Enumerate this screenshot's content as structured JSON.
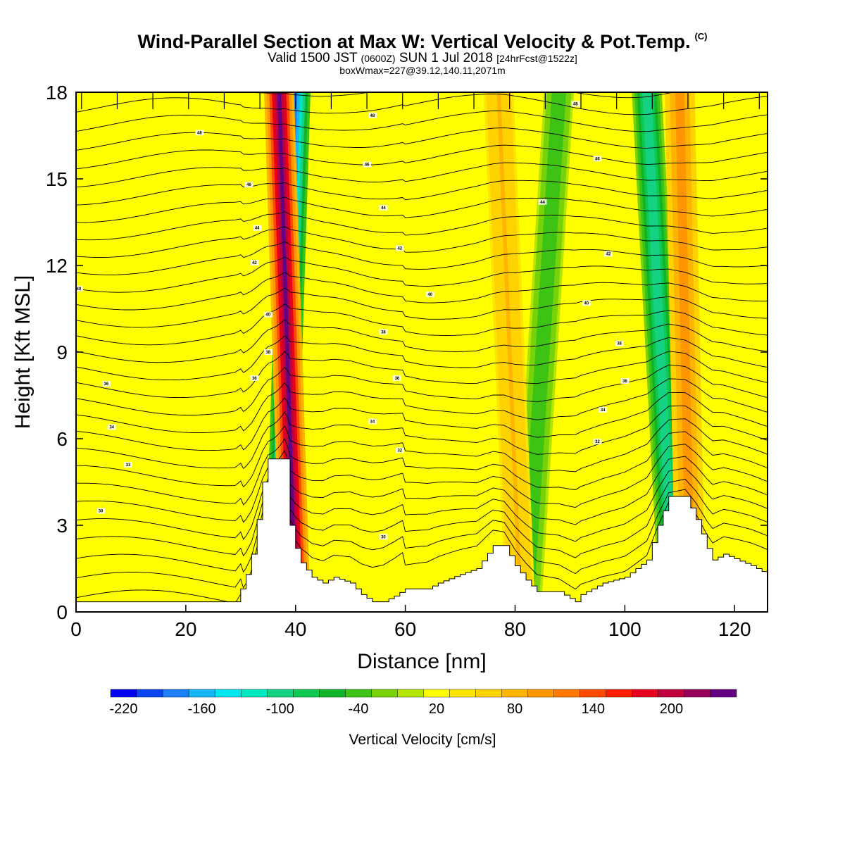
{
  "header": {
    "title": "Wind-Parallel Section at Max W: Vertical Velocity & Pot.Temp.",
    "copyright": "(C)",
    "valid_prefix": "Valid 1500 JST",
    "valid_utc": "(0600Z)",
    "valid_date": "SUN 1 Jul 2018",
    "forecast": "[24hrFcst@1522z]",
    "box_info": "boxWmax=227@39.12,140.11,2071m"
  },
  "colorbar": {
    "label": "Vertical Velocity [cm/s]",
    "tick_labels": [
      "-220",
      "-160",
      "-100",
      "-40",
      "20",
      "80",
      "140",
      "200"
    ],
    "colors": [
      "#0000f0",
      "#0a46f0",
      "#1a7ef5",
      "#14b4f5",
      "#00e6f0",
      "#00e6be",
      "#14d282",
      "#0fc850",
      "#0fb428",
      "#3cc314",
      "#78d20a",
      "#b4e600",
      "#ffff00",
      "#ffe600",
      "#ffd200",
      "#ffb400",
      "#ff9600",
      "#ff7800",
      "#ff4b00",
      "#ff1e00",
      "#e6001e",
      "#be003c",
      "#96005a",
      "#640082"
    ]
  },
  "chart_data": {
    "type": "heatmap",
    "title": "Wind-Parallel Section at Max W: Vertical Velocity & Pot.Temp.",
    "xlabel": "Distance [nm]",
    "ylabel": "Height [Kft MSL]",
    "xlim": [
      0,
      126
    ],
    "ylim": [
      0,
      18
    ],
    "xticks": [
      0,
      20,
      40,
      60,
      80,
      100,
      120
    ],
    "yticks": [
      0,
      3,
      6,
      9,
      12,
      15,
      18
    ],
    "colorbar_range_cm_s": [
      -240,
      240
    ],
    "colorbar_step_cm_s": 20,
    "background_value_cm_s": 10,
    "updraft_bands": [
      {
        "x_at_top_nm": 37,
        "x_at_bottom_nm": 40,
        "peak_cm_s": 227
      },
      {
        "x_at_top_nm": 77,
        "x_at_bottom_nm": 81,
        "peak_cm_s": 60
      },
      {
        "x_at_top_nm": 110,
        "x_at_bottom_nm": 112,
        "peak_cm_s": 90
      }
    ],
    "downdraft_bands": [
      {
        "x_at_top_nm": 40,
        "x_at_bottom_nm": 37,
        "min_cm_s": -200
      },
      {
        "x_at_top_nm": 88,
        "x_at_bottom_nm": 82,
        "min_cm_s": -60
      },
      {
        "x_at_top_nm": 104,
        "x_at_bottom_nm": 109,
        "min_cm_s": -120
      }
    ],
    "terrain_kft": [
      [
        0,
        0.35
      ],
      [
        29,
        0.35
      ],
      [
        30,
        0.8
      ],
      [
        31,
        1.3
      ],
      [
        32,
        2.0
      ],
      [
        33,
        3.2
      ],
      [
        34,
        4.5
      ],
      [
        35,
        5.3
      ],
      [
        38,
        5.3
      ],
      [
        38.5,
        4.3
      ],
      [
        39,
        3.0
      ],
      [
        40,
        2.2
      ],
      [
        41,
        1.7
      ],
      [
        43,
        1.2
      ],
      [
        45,
        1.0
      ],
      [
        47,
        1.2
      ],
      [
        50,
        1.0
      ],
      [
        52,
        0.6
      ],
      [
        54,
        0.35
      ],
      [
        56,
        0.35
      ],
      [
        58,
        0.55
      ],
      [
        60,
        0.8
      ],
      [
        64,
        0.8
      ],
      [
        66,
        1.0
      ],
      [
        70,
        1.3
      ],
      [
        73,
        1.5
      ],
      [
        76,
        2.3
      ],
      [
        78,
        2.3
      ],
      [
        80,
        1.6
      ],
      [
        82,
        1.1
      ],
      [
        84,
        0.7
      ],
      [
        88,
        0.7
      ],
      [
        91,
        0.35
      ],
      [
        92,
        0.6
      ],
      [
        96,
        1.0
      ],
      [
        100,
        1.2
      ],
      [
        104,
        1.8
      ],
      [
        106,
        3.0
      ],
      [
        108,
        4.0
      ],
      [
        111,
        4.0
      ],
      [
        113,
        3.2
      ],
      [
        115,
        2.2
      ],
      [
        116,
        1.8
      ],
      [
        118,
        2.0
      ],
      [
        123,
        1.6
      ],
      [
        126,
        1.3
      ]
    ],
    "isentrope_labels": [
      {
        "x": 0.5,
        "y": 11.2,
        "text": "40"
      },
      {
        "x": 4.5,
        "y": 3.5,
        "text": "30"
      },
      {
        "x": 5.5,
        "y": 7.9,
        "text": "36"
      },
      {
        "x": 6.5,
        "y": 6.4,
        "text": "34"
      },
      {
        "x": 9.5,
        "y": 5.1,
        "text": "33"
      },
      {
        "x": 22.5,
        "y": 16.6,
        "text": "48"
      },
      {
        "x": 31.5,
        "y": 14.8,
        "text": "46"
      },
      {
        "x": 33,
        "y": 13.3,
        "text": "44"
      },
      {
        "x": 32.5,
        "y": 12.1,
        "text": "42"
      },
      {
        "x": 35,
        "y": 10.3,
        "text": "40"
      },
      {
        "x": 35,
        "y": 9.0,
        "text": "38"
      },
      {
        "x": 32.5,
        "y": 8.1,
        "text": "36"
      },
      {
        "x": 54,
        "y": 17.2,
        "text": "48"
      },
      {
        "x": 53,
        "y": 15.5,
        "text": "46"
      },
      {
        "x": 56,
        "y": 14.0,
        "text": "44"
      },
      {
        "x": 59,
        "y": 12.6,
        "text": "42"
      },
      {
        "x": 64.5,
        "y": 11.0,
        "text": "40"
      },
      {
        "x": 56,
        "y": 9.7,
        "text": "38"
      },
      {
        "x": 58.5,
        "y": 8.1,
        "text": "36"
      },
      {
        "x": 54,
        "y": 6.6,
        "text": "34"
      },
      {
        "x": 59,
        "y": 5.6,
        "text": "32"
      },
      {
        "x": 56,
        "y": 2.6,
        "text": "30"
      },
      {
        "x": 91,
        "y": 17.6,
        "text": "48"
      },
      {
        "x": 95,
        "y": 15.7,
        "text": "46"
      },
      {
        "x": 85,
        "y": 14.2,
        "text": "44"
      },
      {
        "x": 97,
        "y": 12.4,
        "text": "42"
      },
      {
        "x": 93,
        "y": 10.7,
        "text": "40"
      },
      {
        "x": 99,
        "y": 9.3,
        "text": "38"
      },
      {
        "x": 100,
        "y": 8.0,
        "text": "36"
      },
      {
        "x": 96,
        "y": 7.0,
        "text": "34"
      },
      {
        "x": 95,
        "y": 5.9,
        "text": "32"
      }
    ]
  }
}
